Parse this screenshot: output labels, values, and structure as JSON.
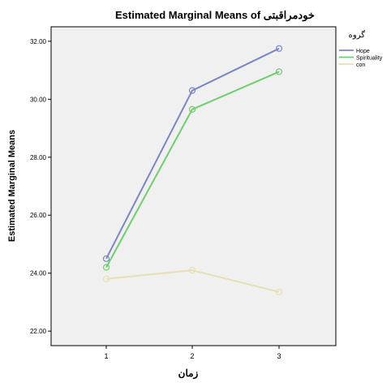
{
  "chart_data": {
    "type": "line",
    "title": "Estimated Marginal Means of خودمراقبتی",
    "xlabel": "زمان",
    "ylabel": "Estimated Marginal Means",
    "categories": [
      "1",
      "2",
      "3"
    ],
    "ylim": [
      21.5,
      32.5
    ],
    "yticks": [
      "22.00",
      "24.00",
      "26.00",
      "28.00",
      "30.00",
      "32.00"
    ],
    "ytick_values": [
      22,
      24,
      26,
      28,
      30,
      32
    ],
    "grid": false,
    "legend_title": "گروه",
    "legend_position": "right",
    "series": [
      {
        "name": "Hope",
        "color": "#7b86c6",
        "values": [
          24.5,
          30.3,
          31.75
        ]
      },
      {
        "name": "Spirituality",
        "color": "#6ccf6c",
        "values": [
          24.2,
          29.65,
          30.95
        ]
      },
      {
        "name": "con",
        "color": "#e7dfb4",
        "values": [
          23.8,
          24.1,
          23.35
        ]
      }
    ]
  }
}
